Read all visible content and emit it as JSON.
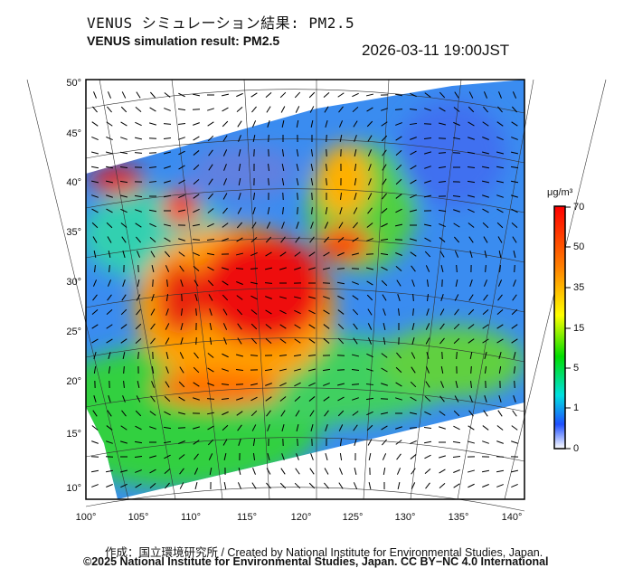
{
  "title_ja": "VENUS シミュレーション結果: PM2.5",
  "title_en": "VENUS simulation result: PM2.5",
  "timestamp": "2026-03-11 19:00JST",
  "map": {
    "lat_labels": [
      "50°",
      "45°",
      "40°",
      "35°",
      "30°",
      "25°",
      "20°",
      "15°",
      "10°"
    ],
    "lon_labels": [
      "100°",
      "105°",
      "110°",
      "115°",
      "120°",
      "125°",
      "130°",
      "135°",
      "140°"
    ]
  },
  "colorbar": {
    "unit": "μg/m³",
    "ticks": [
      "70",
      "50",
      "35",
      "15",
      "5",
      "1",
      "0"
    ],
    "colors": [
      "#ff0000",
      "#ff8000",
      "#ffff00",
      "#00e000",
      "#00e0e0",
      "#2050ff",
      "#ffffff"
    ]
  },
  "footer": {
    "credit": "作成：国立環境研究所 / Created by National Institute for Environmental Studies, Japan.",
    "license": "©2025 National Institute for Environmental Studies, Japan. CC BY−NC 4.0 International"
  }
}
